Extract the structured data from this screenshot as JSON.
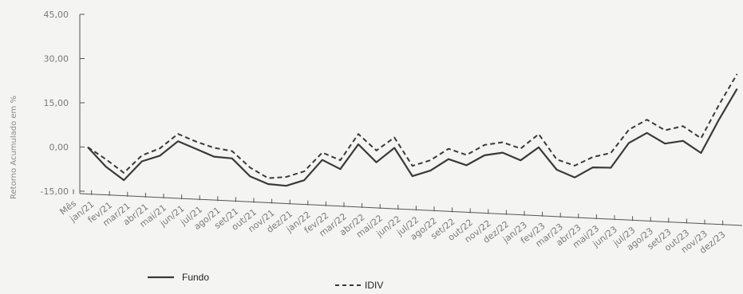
{
  "chart_data": {
    "type": "line",
    "ylabel": "Retorno Acumulado em %",
    "xlabel": "",
    "ylim": [
      -15,
      45
    ],
    "yticks": [
      "45,00",
      "30,00",
      "15,00",
      "0,00",
      "-15,00"
    ],
    "ytick_values": [
      45,
      30,
      15,
      0,
      -15
    ],
    "categories": [
      "Mês",
      "jan/21",
      "fev/21",
      "mar/21",
      "abr/21",
      "mai/21",
      "jun/21",
      "jul/21",
      "ago/21",
      "set/21",
      "out/21",
      "nov/21",
      "dez/21",
      "jan/22",
      "fev/22",
      "mar/22",
      "abr/22",
      "mai/22",
      "jun/22",
      "jul/22",
      "ago/22",
      "set/22",
      "out/22",
      "nov/22",
      "dez/22",
      "jan/23",
      "fev/23",
      "mar/23",
      "abr/23",
      "mai/23",
      "jun/23",
      "jul/23",
      "ago/23",
      "set/23",
      "out/23",
      "nov/23",
      "dez/23"
    ],
    "x": [
      "jan/21",
      "fev/21",
      "mar/21",
      "abr/21",
      "mai/21",
      "jun/21",
      "jul/21",
      "ago/21",
      "set/21",
      "out/21",
      "nov/21",
      "dez/21",
      "jan/22",
      "fev/22",
      "mar/22",
      "abr/22",
      "mai/22",
      "jun/22",
      "jul/22",
      "ago/22",
      "set/22",
      "out/22",
      "nov/22",
      "dez/22",
      "jan/23",
      "fev/23",
      "mar/23",
      "abr/23",
      "mai/23",
      "jun/23",
      "jul/23",
      "ago/23",
      "set/23",
      "out/23",
      "nov/23",
      "dez/23"
    ],
    "series": [
      {
        "name": "Fundo",
        "style": "solid",
        "color": "#3a3a3a",
        "values": [
          0.0,
          -6.5,
          -11.0,
          -4.5,
          -2.5,
          2.5,
          0.0,
          -2.5,
          -3.0,
          -9.0,
          -11.5,
          -12.0,
          -10.0,
          -3.0,
          -6.0,
          2.5,
          -3.5,
          1.5,
          -8.0,
          -6.0,
          -2.0,
          -4.0,
          -0.5,
          0.5,
          -2.0,
          2.5,
          -5.0,
          -7.5,
          -4.0,
          -4.0,
          4.5,
          8.0,
          4.5,
          5.5,
          1.5,
          13.0,
          23.5
        ]
      },
      {
        "name": "IDIV",
        "style": "dashed",
        "color": "#3a3a3a",
        "values": [
          0.0,
          -4.0,
          -8.5,
          -2.5,
          0.0,
          5.0,
          2.5,
          0.5,
          -0.5,
          -6.0,
          -9.5,
          -9.0,
          -7.0,
          -0.5,
          -3.0,
          6.0,
          0.5,
          5.0,
          -4.5,
          -2.5,
          1.5,
          -0.5,
          3.0,
          4.0,
          2.0,
          7.0,
          -1.5,
          -3.5,
          -0.5,
          1.0,
          9.0,
          12.5,
          9.0,
          10.5,
          6.5,
          18.0,
          28.5
        ]
      }
    ],
    "legend": {
      "placement": "bottom",
      "items": [
        {
          "label": "Fundo",
          "style": "solid"
        },
        {
          "label": "IDIV",
          "style": "dashed"
        }
      ]
    },
    "grid": false
  }
}
